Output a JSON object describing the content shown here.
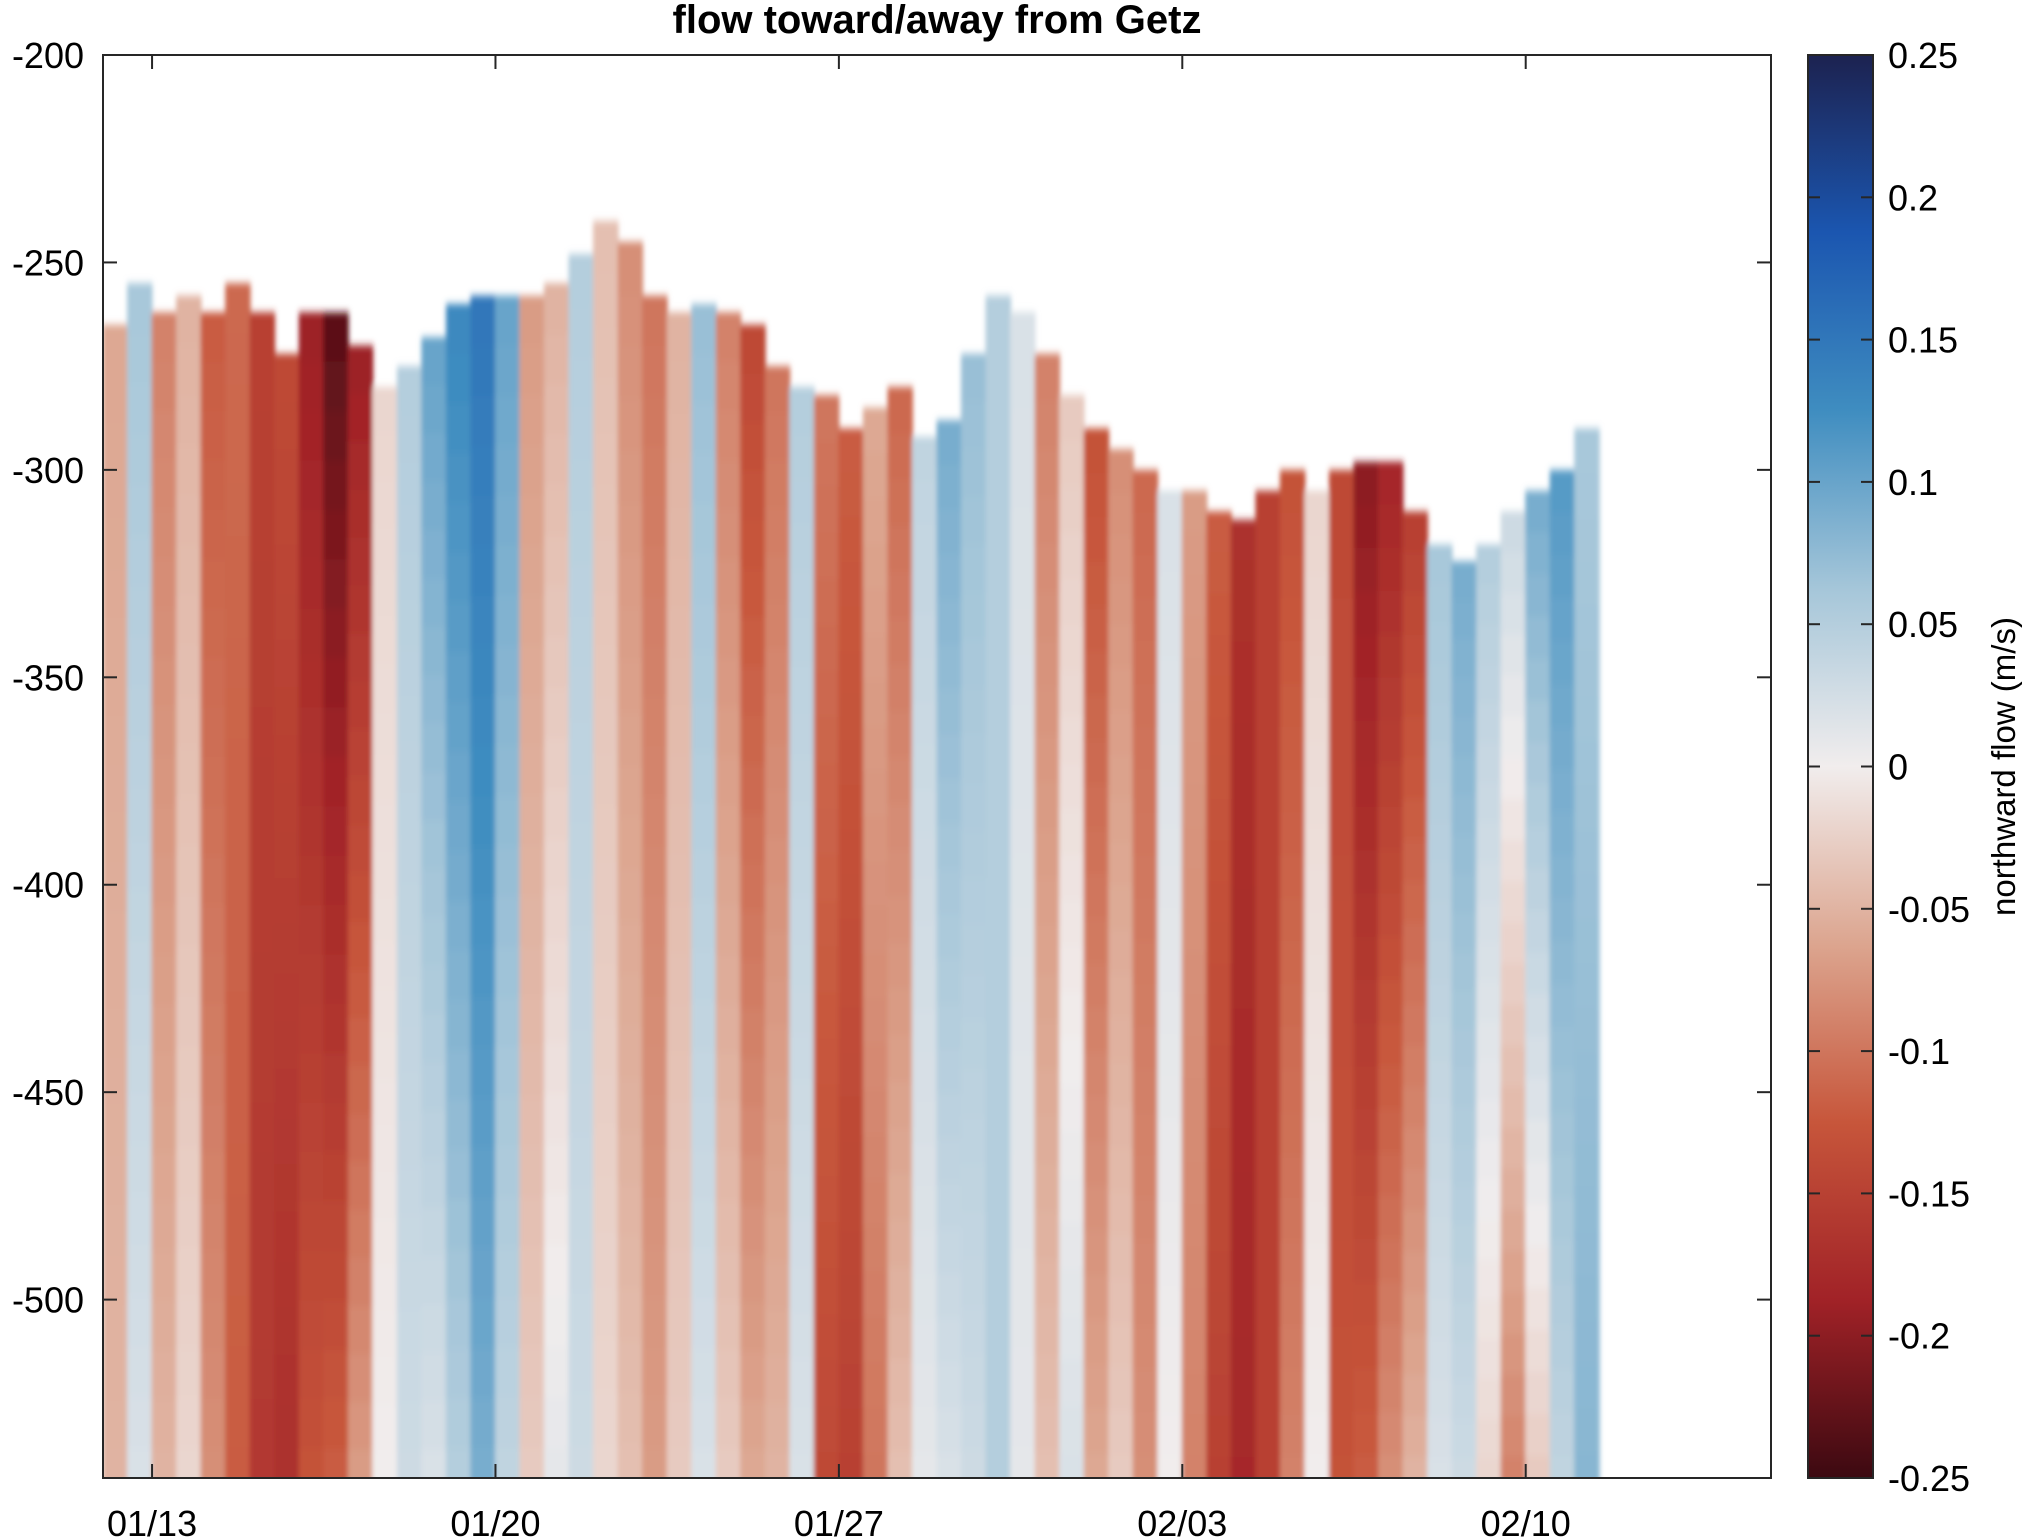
{
  "chart_data": {
    "type": "heatmap",
    "title": "flow toward/away from Getz",
    "xlabel": "",
    "ylabel": "",
    "x_tick_labels": [
      "01/13",
      "01/20",
      "01/27",
      "02/03",
      "02/10"
    ],
    "x_tick_dates": [
      "2000-01-13",
      "2000-01-20",
      "2000-01-27",
      "2000-02-03",
      "2000-02-10"
    ],
    "xlim": [
      "2000-01-12",
      "2000-02-15"
    ],
    "y_tick_labels": [
      "-200",
      "-250",
      "-300",
      "-350",
      "-400",
      "-450",
      "-500"
    ],
    "y_ticks": [
      -200,
      -250,
      -300,
      -350,
      -400,
      -450,
      -500
    ],
    "ylim": [
      -543,
      -200
    ],
    "colorbar": {
      "label": "northward flow (m/s)",
      "clim": [
        -0.25,
        0.25
      ],
      "tick_labels": [
        "0.25",
        "0.2",
        "0.15",
        "0.1",
        "0.05",
        "0",
        "-0.05",
        "-0.1",
        "-0.15",
        "-0.2",
        "-0.25"
      ],
      "ticks": [
        0.25,
        0.2,
        0.15,
        0.1,
        0.05,
        0,
        -0.05,
        -0.1,
        -0.15,
        -0.2,
        -0.25
      ],
      "colormap": "red-white-blue (balance)",
      "colors": [
        "#3c0911",
        "#a12227",
        "#c7563b",
        "#dca58f",
        "#f1eded",
        "#a5c6d9",
        "#3f8dc0",
        "#1b56b0",
        "#1c2250"
      ]
    },
    "grid": false,
    "columns": [
      {
        "date": "2000-01-12",
        "top": -265,
        "flow": -0.06,
        "bottom_flow": -0.05
      },
      {
        "date": "2000-01-12T12",
        "top": -255,
        "flow": 0.06,
        "bottom_flow": 0.02
      },
      {
        "date": "2000-01-13",
        "top": -262,
        "flow": -0.09,
        "bottom_flow": -0.05
      },
      {
        "date": "2000-01-13T12",
        "top": -258,
        "flow": -0.05,
        "bottom_flow": -0.02
      },
      {
        "date": "2000-01-14",
        "top": -262,
        "flow": -0.12,
        "bottom_flow": -0.08
      },
      {
        "date": "2000-01-14T12",
        "top": -255,
        "flow": -0.11,
        "bottom_flow": -0.12
      },
      {
        "date": "2000-01-15",
        "top": -262,
        "flow": -0.15,
        "bottom_flow": -0.16
      },
      {
        "date": "2000-01-15T12",
        "top": -272,
        "flow": -0.14,
        "bottom_flow": -0.17
      },
      {
        "date": "2000-01-16",
        "top": -262,
        "flow": -0.19,
        "bottom_flow": -0.13
      },
      {
        "date": "2000-01-16T12",
        "top": -262,
        "flow": -0.23,
        "bottom_flow": -0.12
      },
      {
        "date": "2000-01-17",
        "top": -270,
        "flow": -0.19,
        "bottom_flow": -0.07
      },
      {
        "date": "2000-01-17T12",
        "top": -280,
        "flow": -0.02,
        "bottom_flow": 0.0
      },
      {
        "date": "2000-01-18",
        "top": -275,
        "flow": 0.05,
        "bottom_flow": 0.03
      },
      {
        "date": "2000-01-18T12",
        "top": -268,
        "flow": 0.1,
        "bottom_flow": 0.02
      },
      {
        "date": "2000-01-19",
        "top": -260,
        "flow": 0.13,
        "bottom_flow": 0.05
      },
      {
        "date": "2000-01-19T12",
        "top": -258,
        "flow": 0.15,
        "bottom_flow": 0.09
      },
      {
        "date": "2000-01-20",
        "top": -258,
        "flow": 0.1,
        "bottom_flow": 0.04
      },
      {
        "date": "2000-01-20T12",
        "top": -258,
        "flow": -0.07,
        "bottom_flow": -0.03
      },
      {
        "date": "2000-01-21",
        "top": -255,
        "flow": -0.05,
        "bottom_flow": 0.01
      },
      {
        "date": "2000-01-21T12",
        "top": -248,
        "flow": 0.05,
        "bottom_flow": 0.03
      },
      {
        "date": "2000-01-22",
        "top": -240,
        "flow": -0.04,
        "bottom_flow": -0.02
      },
      {
        "date": "2000-01-22T12",
        "top": -245,
        "flow": -0.08,
        "bottom_flow": -0.04
      },
      {
        "date": "2000-01-23",
        "top": -258,
        "flow": -0.1,
        "bottom_flow": -0.07
      },
      {
        "date": "2000-01-23T12",
        "top": -262,
        "flow": -0.05,
        "bottom_flow": -0.03
      },
      {
        "date": "2000-01-24",
        "top": -260,
        "flow": 0.07,
        "bottom_flow": 0.02
      },
      {
        "date": "2000-01-24T12",
        "top": -262,
        "flow": -0.09,
        "bottom_flow": -0.03
      },
      {
        "date": "2000-01-25",
        "top": -265,
        "flow": -0.14,
        "bottom_flow": -0.06
      },
      {
        "date": "2000-01-25T12",
        "top": -275,
        "flow": -0.1,
        "bottom_flow": -0.05
      },
      {
        "date": "2000-01-26",
        "top": -280,
        "flow": 0.05,
        "bottom_flow": 0.02
      },
      {
        "date": "2000-01-26T12",
        "top": -282,
        "flow": -0.1,
        "bottom_flow": -0.14
      },
      {
        "date": "2000-01-27",
        "top": -290,
        "flow": -0.12,
        "bottom_flow": -0.15
      },
      {
        "date": "2000-01-27T12",
        "top": -285,
        "flow": -0.06,
        "bottom_flow": -0.1
      },
      {
        "date": "2000-01-28",
        "top": -280,
        "flow": -0.11,
        "bottom_flow": -0.04
      },
      {
        "date": "2000-01-28T12",
        "top": -292,
        "flow": 0.04,
        "bottom_flow": 0.01
      },
      {
        "date": "2000-01-29",
        "top": -288,
        "flow": 0.09,
        "bottom_flow": 0.02
      },
      {
        "date": "2000-01-29T12",
        "top": -272,
        "flow": 0.07,
        "bottom_flow": 0.03
      },
      {
        "date": "2000-01-30",
        "top": -258,
        "flow": 0.05,
        "bottom_flow": 0.05
      },
      {
        "date": "2000-01-30T12",
        "top": -262,
        "flow": 0.02,
        "bottom_flow": 0.01
      },
      {
        "date": "2000-01-31",
        "top": -272,
        "flow": -0.09,
        "bottom_flow": -0.04
      },
      {
        "date": "2000-01-31T12",
        "top": -282,
        "flow": -0.03,
        "bottom_flow": 0.02
      },
      {
        "date": "2000-02-01",
        "top": -290,
        "flow": -0.13,
        "bottom_flow": -0.06
      },
      {
        "date": "2000-02-01T12",
        "top": -295,
        "flow": -0.08,
        "bottom_flow": -0.03
      },
      {
        "date": "2000-02-02",
        "top": -300,
        "flow": -0.11,
        "bottom_flow": -0.08
      },
      {
        "date": "2000-02-02T12",
        "top": -305,
        "flow": 0.02,
        "bottom_flow": 0.0
      },
      {
        "date": "2000-02-03",
        "top": -305,
        "flow": -0.07,
        "bottom_flow": -0.09
      },
      {
        "date": "2000-02-03T12",
        "top": -310,
        "flow": -0.12,
        "bottom_flow": -0.15
      },
      {
        "date": "2000-02-04",
        "top": -312,
        "flow": -0.17,
        "bottom_flow": -0.18
      },
      {
        "date": "2000-02-04T12",
        "top": -305,
        "flow": -0.15,
        "bottom_flow": -0.15
      },
      {
        "date": "2000-02-05",
        "top": -300,
        "flow": -0.13,
        "bottom_flow": -0.09
      },
      {
        "date": "2000-02-05T12",
        "top": -305,
        "flow": -0.02,
        "bottom_flow": 0.0
      },
      {
        "date": "2000-02-06",
        "top": -300,
        "flow": -0.14,
        "bottom_flow": -0.13
      },
      {
        "date": "2000-02-06T12",
        "top": -298,
        "flow": -0.2,
        "bottom_flow": -0.12
      },
      {
        "date": "2000-02-07",
        "top": -298,
        "flow": -0.18,
        "bottom_flow": -0.08
      },
      {
        "date": "2000-02-07T12",
        "top": -310,
        "flow": -0.15,
        "bottom_flow": -0.05
      },
      {
        "date": "2000-02-08",
        "top": -318,
        "flow": 0.06,
        "bottom_flow": 0.02
      },
      {
        "date": "2000-02-08T12",
        "top": -322,
        "flow": 0.09,
        "bottom_flow": 0.03
      },
      {
        "date": "2000-02-09",
        "top": -318,
        "flow": 0.05,
        "bottom_flow": -0.02
      },
      {
        "date": "2000-02-09T12",
        "top": -310,
        "flow": 0.03,
        "bottom_flow": -0.09
      },
      {
        "date": "2000-02-10",
        "top": -305,
        "flow": 0.09,
        "bottom_flow": -0.03
      },
      {
        "date": "2000-02-10T12",
        "top": -300,
        "flow": 0.11,
        "bottom_flow": 0.04
      },
      {
        "date": "2000-02-11",
        "top": -290,
        "flow": 0.06,
        "bottom_flow": 0.08
      }
    ]
  }
}
